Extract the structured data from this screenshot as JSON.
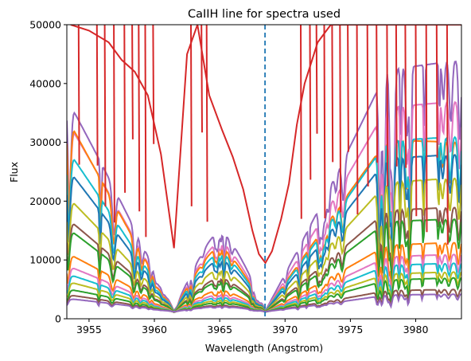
{
  "chart_data": {
    "type": "line",
    "title": "CaIIH line for spectra used",
    "xlabel": "Wavelength (Angstrom)",
    "ylabel": "Flux",
    "xlim": [
      3953.3,
      3983.5
    ],
    "ylim": [
      0,
      50000
    ],
    "xticks": [
      "3955",
      "3960",
      "3965",
      "3970",
      "3975",
      "3980"
    ],
    "yticks": [
      "0",
      "10000",
      "20000",
      "30000",
      "40000",
      "50000"
    ],
    "xtick_values": [
      3955,
      3960,
      3965,
      3970,
      3975,
      3980
    ],
    "ytick_values": [
      0,
      10000,
      20000,
      30000,
      40000,
      50000
    ],
    "grid": false,
    "legend": "none",
    "reference_line": {
      "x": 3968.47,
      "style": "dashed",
      "color": "#1f77b4"
    },
    "line_minima": [
      3961.5,
      3968.5
    ],
    "series_summary": [
      {
        "color": "#9467bd",
        "left_edge_level": 35000,
        "right_edge_level": 44000
      },
      {
        "color": "#e377c2",
        "left_edge_level": 31500,
        "right_edge_level": 37000
      },
      {
        "color": "#ff7f0e",
        "left_edge_level": 32000,
        "right_edge_level": 30000
      },
      {
        "color": "#17becf",
        "left_edge_level": 27000,
        "right_edge_level": 31000
      },
      {
        "color": "#1f77b4",
        "left_edge_level": 24000,
        "right_edge_level": 28000
      },
      {
        "color": "#bcbd22",
        "left_edge_level": 19500,
        "right_edge_level": 24000
      },
      {
        "color": "#8c564b",
        "left_edge_level": 16000,
        "right_edge_level": 19000
      },
      {
        "color": "#2ca02c",
        "left_edge_level": 14500,
        "right_edge_level": 17000
      },
      {
        "color": "#ff7f0e",
        "left_edge_level": 10500,
        "right_edge_level": 13000
      },
      {
        "color": "#e377c2",
        "left_edge_level": 8500,
        "right_edge_level": 11000
      },
      {
        "color": "#17becf",
        "left_edge_level": 7200,
        "right_edge_level": 9500
      },
      {
        "color": "#bcbd22",
        "left_edge_level": 6000,
        "right_edge_level": 8000
      },
      {
        "color": "#2ca02c",
        "left_edge_level": 4800,
        "right_edge_level": 7000
      },
      {
        "color": "#8c564b",
        "left_edge_level": 3900,
        "right_edge_level": 5000
      },
      {
        "color": "#9467bd",
        "left_edge_level": 3300,
        "right_edge_level": 4200
      }
    ],
    "highlight_series": {
      "color": "#d62728",
      "points": [
        [
          3953.6,
          50000
        ],
        [
          3955.0,
          49000
        ],
        [
          3956.5,
          47000
        ],
        [
          3957.5,
          44000
        ],
        [
          3958.5,
          42000
        ],
        [
          3959.5,
          38000
        ],
        [
          3960.5,
          28000
        ],
        [
          3961.5,
          12000
        ],
        [
          3962.5,
          45000
        ],
        [
          3963.3,
          50000
        ],
        [
          3964.2,
          38000
        ],
        [
          3965.2,
          32000
        ],
        [
          3966.0,
          27500
        ],
        [
          3966.8,
          22000
        ],
        [
          3967.5,
          15000
        ],
        [
          3968.0,
          11000
        ],
        [
          3968.5,
          9500
        ],
        [
          3969.0,
          11500
        ],
        [
          3969.7,
          17000
        ],
        [
          3970.3,
          23000
        ],
        [
          3970.9,
          33000
        ],
        [
          3971.5,
          40000
        ],
        [
          3972.5,
          47000
        ],
        [
          3973.5,
          50000
        ],
        [
          3983.5,
          50000
        ]
      ]
    }
  }
}
